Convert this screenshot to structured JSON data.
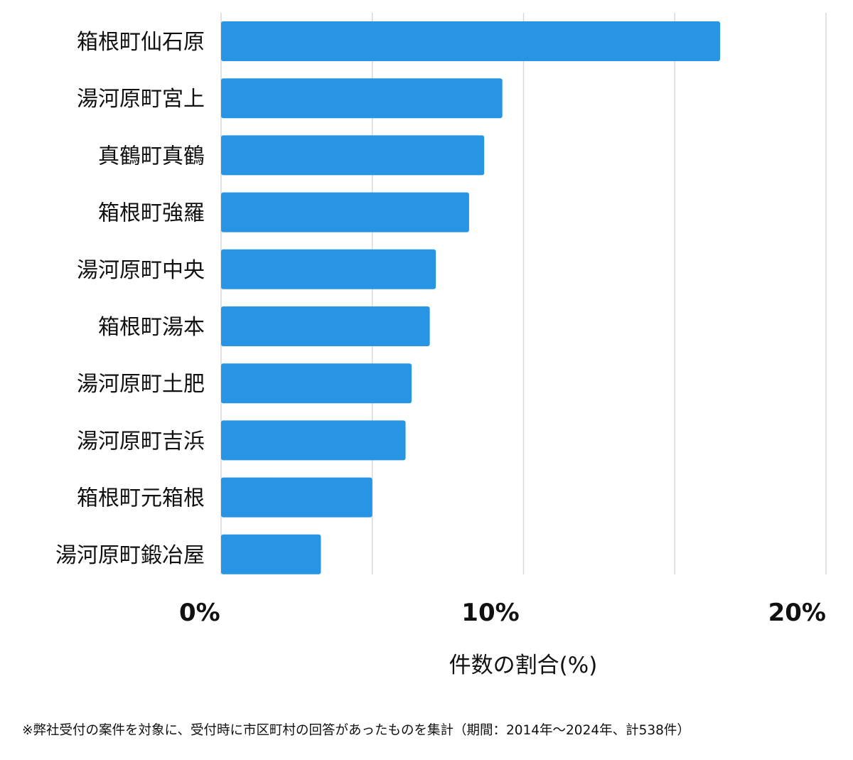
{
  "chart_data": {
    "type": "bar",
    "orientation": "horizontal",
    "categories": [
      "箱根町仙石原",
      "湯河原町宮上",
      "真鶴町真鶴",
      "箱根町強羅",
      "湯河原町中央",
      "箱根町湯本",
      "湯河原町土肥",
      "湯河原町吉浜",
      "箱根町元箱根",
      "湯河原町鍛冶屋"
    ],
    "values": [
      16.5,
      9.3,
      8.7,
      8.2,
      7.1,
      6.9,
      6.3,
      6.1,
      5.0,
      3.3
    ],
    "xlim": [
      0,
      20
    ],
    "xticks": [
      0,
      10,
      20
    ],
    "xtick_labels": [
      "0%",
      "10%",
      "20%"
    ],
    "gridlines_at": [
      0,
      5,
      10,
      15,
      20
    ],
    "xlabel": "件数の割合(%)",
    "ylabel": "",
    "title": "",
    "grid": true,
    "bar_color": "#2795e4"
  },
  "footnote": "※弊社受付の案件を対象に、受付時に市区町村の回答があったものを集計（期間：2014年～2024年、計538件）"
}
